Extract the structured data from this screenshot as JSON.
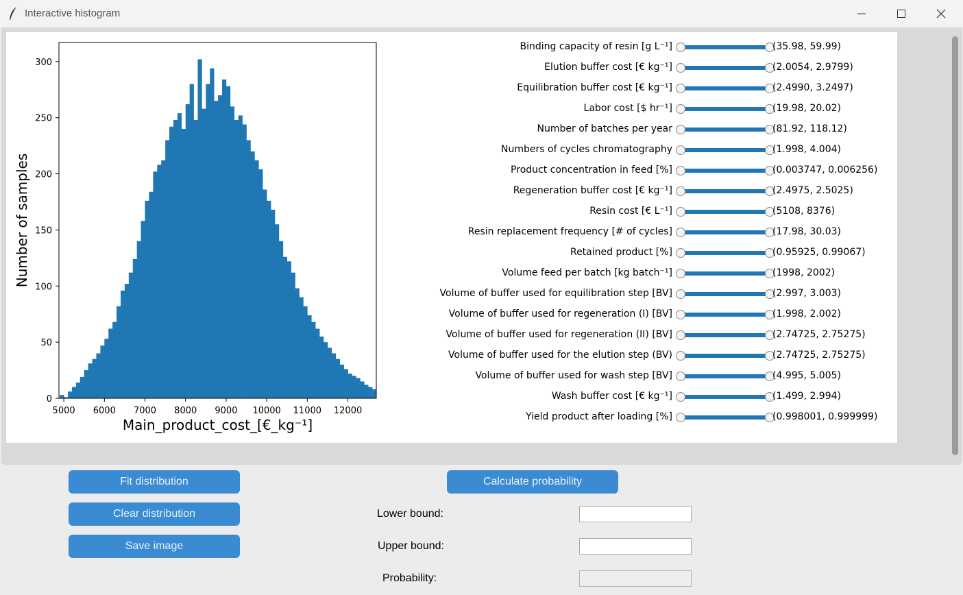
{
  "window": {
    "title": "Interactive histogram",
    "icon": "feather-icon",
    "controls": [
      "minimize-icon",
      "maximize-icon",
      "close-icon"
    ]
  },
  "chart_data": {
    "type": "bar",
    "xlabel": "Main_product_cost_[€_kg⁻¹]",
    "ylabel": "Number of samples",
    "xlim": [
      4880,
      12700
    ],
    "ylim": [
      0,
      317
    ],
    "xticks": [
      5000,
      6000,
      7000,
      8000,
      9000,
      10000,
      11000,
      12000
    ],
    "yticks": [
      0,
      50,
      100,
      150,
      200,
      250,
      300
    ],
    "bar_color": "#1f77b4",
    "bin_width": 100,
    "bin_start": 4900,
    "values": [
      3,
      1,
      6,
      10,
      14,
      19,
      25,
      31,
      35,
      40,
      47,
      53,
      62,
      68,
      82,
      96,
      102,
      112,
      124,
      140,
      158,
      176,
      184,
      202,
      208,
      212,
      230,
      242,
      248,
      254,
      240,
      262,
      280,
      248,
      302,
      258,
      280,
      294,
      265,
      270,
      284,
      278,
      260,
      248,
      252,
      244,
      230,
      220,
      212,
      204,
      186,
      176,
      168,
      155,
      140,
      126,
      122,
      112,
      98,
      90,
      82,
      74,
      68,
      62,
      55,
      50,
      45,
      40,
      35,
      30,
      26,
      22,
      20,
      18,
      15,
      12,
      10,
      8,
      7,
      6,
      5,
      4,
      3,
      2,
      2,
      1,
      1,
      1
    ],
    "grid": false
  },
  "sliders": [
    {
      "label": "Binding capacity of resin [g L⁻¹]",
      "value": "(35.98, 59.99)"
    },
    {
      "label": "Elution buffer cost [€ kg⁻¹]",
      "value": "(2.0054, 2.9799)"
    },
    {
      "label": "Equilibration buffer cost [€ kg⁻¹]",
      "value": "(2.4990, 3.2497)"
    },
    {
      "label": "Labor cost [$ hr⁻¹]",
      "value": "(19.98, 20.02)"
    },
    {
      "label": "Number of batches per year",
      "value": "(81.92, 118.12)"
    },
    {
      "label": "Numbers of cycles chromatography",
      "value": "(1.998, 4.004)"
    },
    {
      "label": "Product concentration in feed [%]",
      "value": "(0.003747, 0.006256)"
    },
    {
      "label": "Regeneration buffer cost [€ kg⁻¹]",
      "value": "(2.4975, 2.5025)"
    },
    {
      "label": "Resin cost [€ L⁻¹]",
      "value": "(5108, 8376)"
    },
    {
      "label": "Resin replacement frequency [# of cycles]",
      "value": "(17.98, 30.03)"
    },
    {
      "label": "Retained product [%]",
      "value": "(0.95925, 0.99067)"
    },
    {
      "label": "Volume feed per batch [kg batch⁻¹]",
      "value": "(1998, 2002)"
    },
    {
      "label": "Volume of buffer used for equilibration step [BV]",
      "value": "(2.997, 3.003)"
    },
    {
      "label": "Volume of buffer used for regeneration (I) [BV]",
      "value": "(1.998, 2.002)"
    },
    {
      "label": "Volume of buffer used for regeneration (II) [BV]",
      "value": "(2.74725, 2.75275)"
    },
    {
      "label": "Volume of buffer used for the elution step (BV)",
      "value": "(2.74725, 2.75275)"
    },
    {
      "label": "Volume of buffer used for wash step [BV]",
      "value": "(4.995, 5.005)"
    },
    {
      "label": "Wash buffer cost [€ kg⁻¹]",
      "value": "(1.499, 2.994)"
    },
    {
      "label": "Yield product after loading [%]",
      "value": "(0.998001, 0.999999)"
    }
  ],
  "buttons": {
    "fit": "Fit distribution",
    "clear": "Clear distribution",
    "save": "Save image",
    "calculate": "Calculate probability"
  },
  "fields": {
    "lower_label": "Lower bound:",
    "lower_value": "",
    "upper_label": "Upper bound:",
    "upper_value": "",
    "probability_label": "Probability:",
    "probability_value": ""
  }
}
